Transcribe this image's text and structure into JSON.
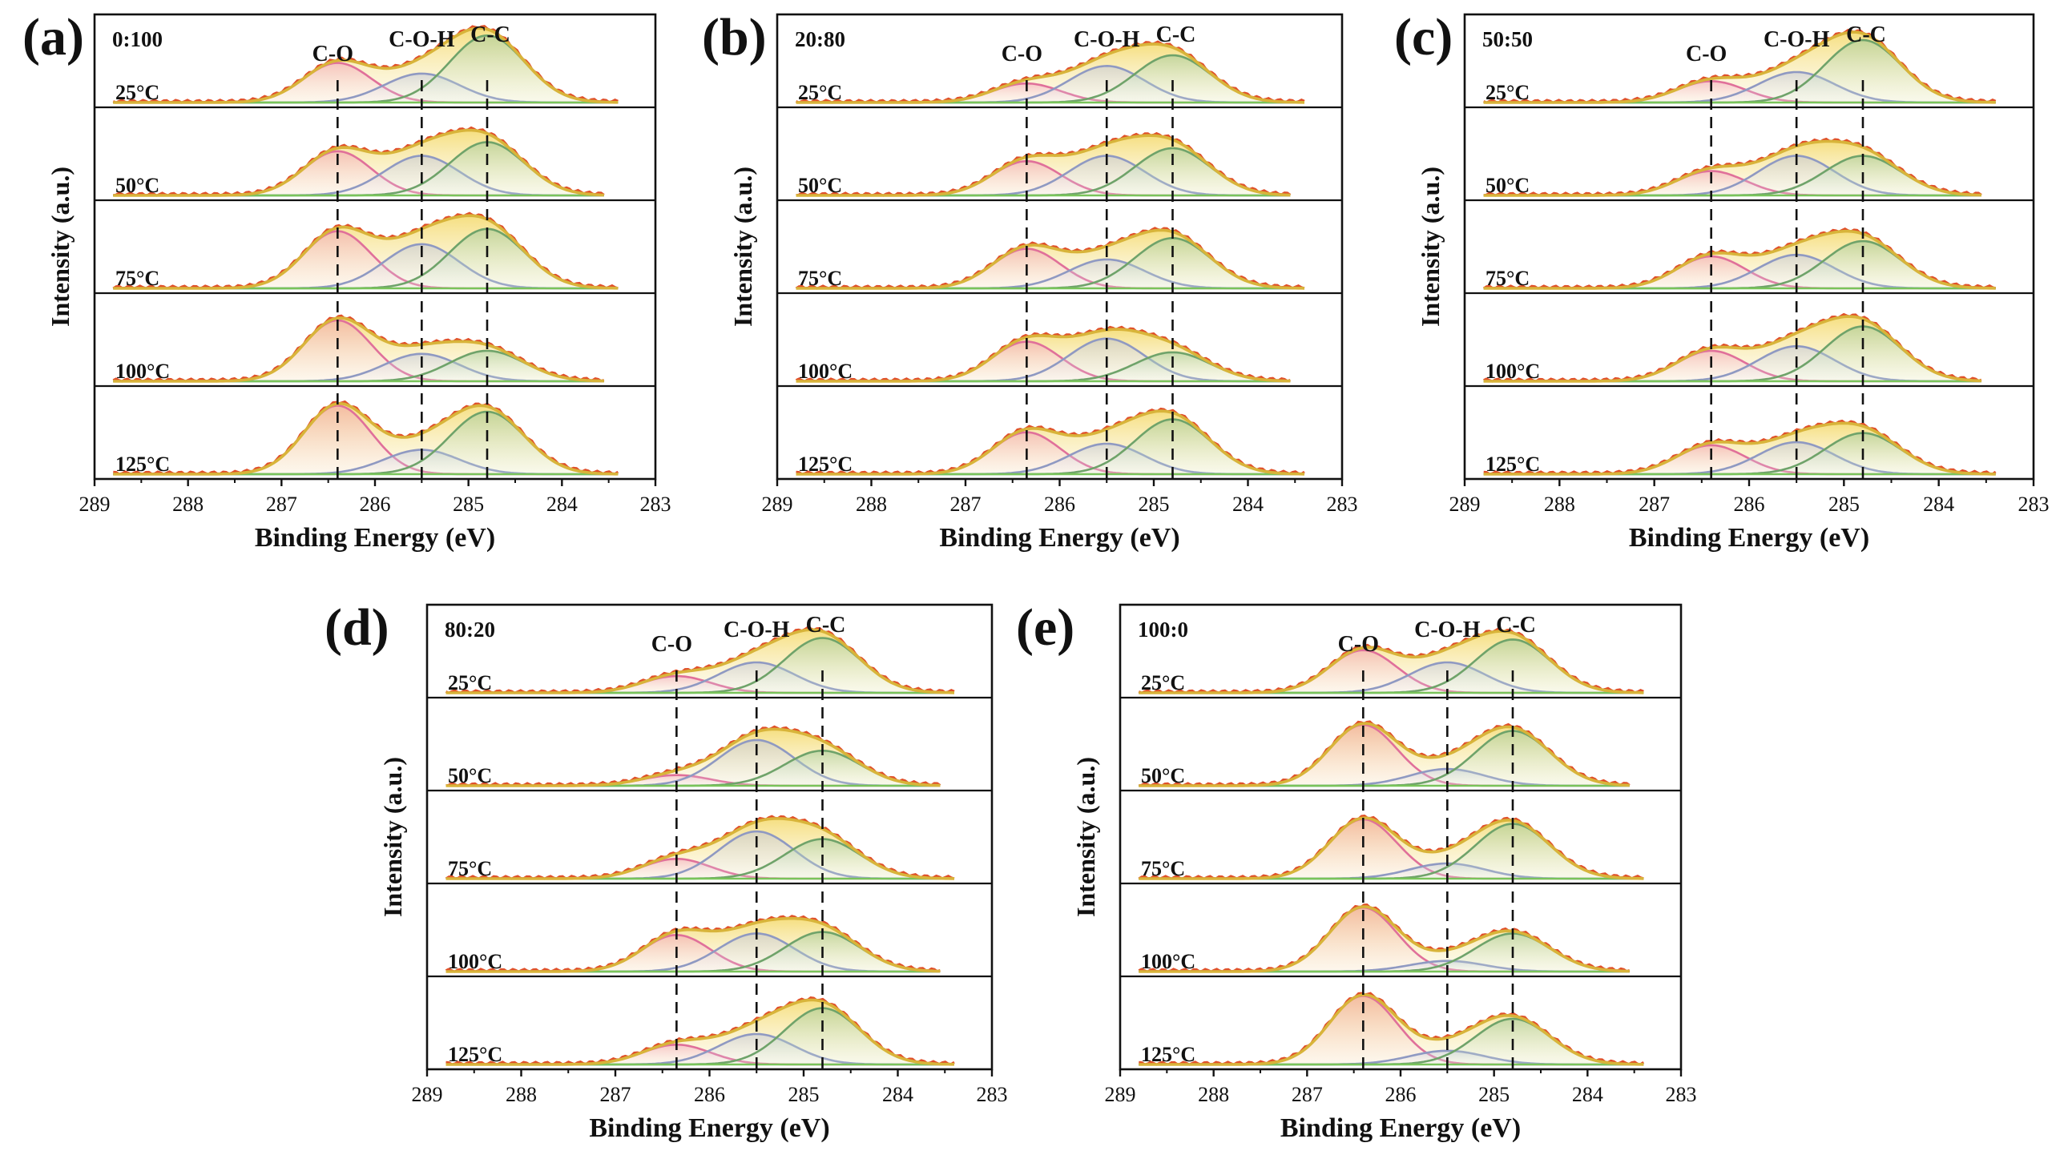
{
  "figure": {
    "x_label": "Binding Energy (eV)",
    "y_label": "Intensity (a.u.)",
    "ticks": [
      "289",
      "288",
      "287",
      "286",
      "285",
      "284",
      "283"
    ],
    "temperatures": [
      "25°C",
      "50°C",
      "75°C",
      "100°C",
      "125°C"
    ],
    "peak_names": [
      "C-O",
      "C-O-H",
      "C-C"
    ],
    "colors": {
      "raw": "#e0502a",
      "envelope": "#d8b43a",
      "fill": "#f6e59a",
      "CO": "#e0709a",
      "COH": "#8f99c2",
      "CC": "#6fa36a",
      "baseline": "#79c45a"
    }
  },
  "chart_data": [
    {
      "panel": "(a)",
      "ratio": "0:100",
      "type": "line",
      "xlabel": "Binding Energy (eV)",
      "ylabel": "Intensity (a.u.)",
      "xlim": [
        289,
        283
      ],
      "peak_positions_eV": {
        "C-O": 286.4,
        "C-O-H": 285.5,
        "C-C": 284.8
      },
      "series_names": [
        "C-O",
        "C-O-H",
        "C-C"
      ],
      "rows": [
        {
          "temp": "25°C",
          "heights": [
            0.52,
            0.38,
            0.88
          ]
        },
        {
          "temp": "50°C",
          "heights": [
            0.58,
            0.52,
            0.7
          ]
        },
        {
          "temp": "75°C",
          "heights": [
            0.75,
            0.58,
            0.78
          ]
        },
        {
          "temp": "100°C",
          "heights": [
            0.8,
            0.36,
            0.4
          ]
        },
        {
          "temp": "125°C",
          "heights": [
            0.9,
            0.32,
            0.82
          ]
        }
      ]
    },
    {
      "panel": "(b)",
      "ratio": "20:80",
      "type": "line",
      "xlabel": "Binding Energy (eV)",
      "ylabel": "Intensity (a.u.)",
      "xlim": [
        289,
        283
      ],
      "peak_positions_eV": {
        "C-O": 286.35,
        "C-O-H": 285.5,
        "C-C": 284.8
      },
      "series_names": [
        "C-O",
        "C-O-H",
        "C-C"
      ],
      "rows": [
        {
          "temp": "25°C",
          "heights": [
            0.25,
            0.48,
            0.62
          ]
        },
        {
          "temp": "50°C",
          "heights": [
            0.45,
            0.52,
            0.62
          ]
        },
        {
          "temp": "75°C",
          "heights": [
            0.52,
            0.38,
            0.66
          ]
        },
        {
          "temp": "100°C",
          "heights": [
            0.52,
            0.56,
            0.38
          ]
        },
        {
          "temp": "125°C",
          "heights": [
            0.55,
            0.4,
            0.72
          ]
        }
      ]
    },
    {
      "panel": "(c)",
      "ratio": "50:50",
      "type": "line",
      "xlabel": "Binding Energy (eV)",
      "ylabel": "Intensity (a.u.)",
      "xlim": [
        289,
        283
      ],
      "peak_positions_eV": {
        "C-O": 286.4,
        "C-O-H": 285.5,
        "C-C": 284.8
      },
      "series_names": [
        "C-O",
        "C-O-H",
        "C-C"
      ],
      "rows": [
        {
          "temp": "25°C",
          "heights": [
            0.28,
            0.4,
            0.82
          ]
        },
        {
          "temp": "50°C",
          "heights": [
            0.32,
            0.52,
            0.52
          ]
        },
        {
          "temp": "75°C",
          "heights": [
            0.42,
            0.44,
            0.62
          ]
        },
        {
          "temp": "100°C",
          "heights": [
            0.4,
            0.46,
            0.72
          ]
        },
        {
          "temp": "125°C",
          "heights": [
            0.38,
            0.42,
            0.54
          ]
        }
      ]
    },
    {
      "panel": "(d)",
      "ratio": "80:20",
      "type": "line",
      "xlabel": "Binding Energy (eV)",
      "ylabel": "Intensity (a.u.)",
      "xlim": [
        289,
        283
      ],
      "peak_positions_eV": {
        "C-O": 286.35,
        "C-O-H": 285.5,
        "C-C": 284.8
      },
      "series_names": [
        "C-O",
        "C-O-H",
        "C-C"
      ],
      "rows": [
        {
          "temp": "25°C",
          "heights": [
            0.22,
            0.4,
            0.72
          ]
        },
        {
          "temp": "50°C",
          "heights": [
            0.14,
            0.6,
            0.46
          ]
        },
        {
          "temp": "75°C",
          "heights": [
            0.26,
            0.62,
            0.52
          ]
        },
        {
          "temp": "100°C",
          "heights": [
            0.48,
            0.5,
            0.52
          ]
        },
        {
          "temp": "125°C",
          "heights": [
            0.26,
            0.4,
            0.74
          ]
        }
      ]
    },
    {
      "panel": "(e)",
      "ratio": "100:0",
      "type": "line",
      "xlabel": "Binding Energy (eV)",
      "ylabel": "Intensity (a.u.)",
      "xlim": [
        289,
        283
      ],
      "peak_positions_eV": {
        "C-O": 286.4,
        "C-O-H": 285.5,
        "C-C": 284.8
      },
      "series_names": [
        "C-O",
        "C-O-H",
        "C-C"
      ],
      "rows": [
        {
          "temp": "25°C",
          "heights": [
            0.56,
            0.4,
            0.7
          ]
        },
        {
          "temp": "50°C",
          "heights": [
            0.8,
            0.22,
            0.72
          ]
        },
        {
          "temp": "75°C",
          "heights": [
            0.78,
            0.2,
            0.72
          ]
        },
        {
          "temp": "100°C",
          "heights": [
            0.84,
            0.14,
            0.5
          ]
        },
        {
          "temp": "125°C",
          "heights": [
            0.9,
            0.18,
            0.6
          ]
        }
      ]
    }
  ]
}
